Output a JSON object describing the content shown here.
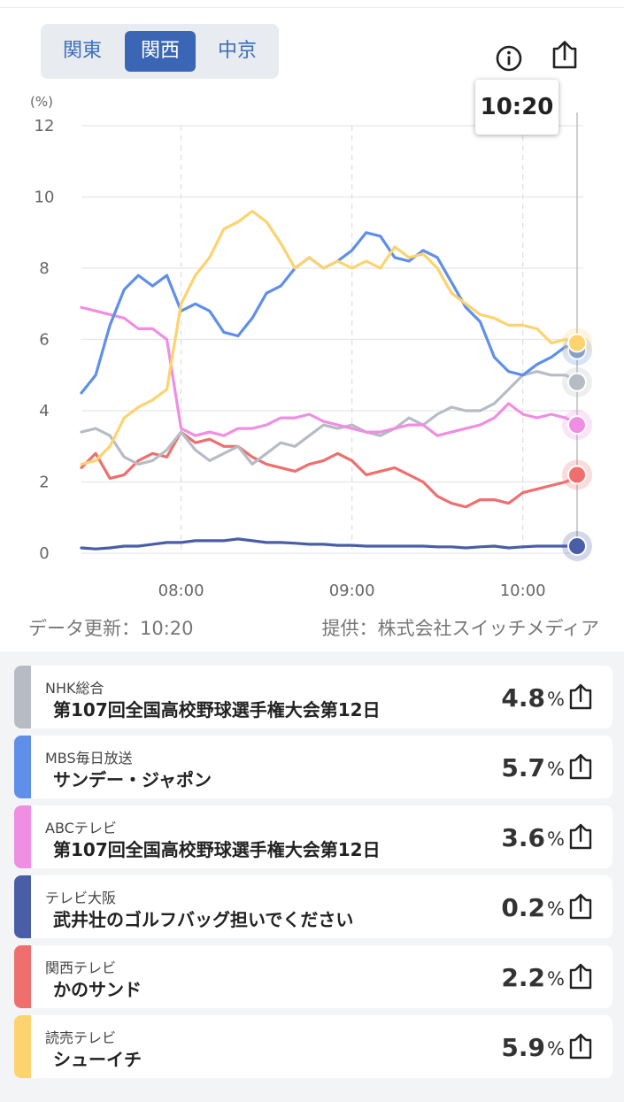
{
  "region_tabs": [
    {
      "label": "関東",
      "active": false
    },
    {
      "label": "関西",
      "active": true
    },
    {
      "label": "中京",
      "active": false
    }
  ],
  "icons": {
    "info": "info-icon",
    "share": "share-icon"
  },
  "cursor_time": "10:20",
  "chart_data": {
    "type": "line",
    "ylabel": "(%)",
    "ylim": [
      0,
      12
    ],
    "yticks": [
      "0",
      "2",
      "4",
      "6",
      "8",
      "10",
      "12"
    ],
    "xrange_minutes": [
      445,
      620
    ],
    "xticks": [
      {
        "min": 480,
        "label": "08:00"
      },
      {
        "min": 540,
        "label": "09:00"
      },
      {
        "min": 600,
        "label": "10:00"
      }
    ],
    "grid": true,
    "series": [
      {
        "name": "NHK総合",
        "color": "#b7bcc4",
        "x": [
          445,
          450,
          455,
          460,
          465,
          470,
          475,
          480,
          485,
          490,
          495,
          500,
          505,
          510,
          515,
          520,
          525,
          530,
          535,
          540,
          545,
          550,
          555,
          560,
          565,
          570,
          575,
          580,
          585,
          590,
          595,
          600,
          605,
          610,
          615,
          620
        ],
        "y": [
          3.4,
          3.5,
          3.3,
          2.7,
          2.5,
          2.6,
          2.9,
          3.4,
          2.9,
          2.6,
          2.8,
          3.0,
          2.5,
          2.8,
          3.1,
          3.0,
          3.3,
          3.6,
          3.5,
          3.6,
          3.4,
          3.3,
          3.5,
          3.8,
          3.6,
          3.9,
          4.1,
          4.0,
          4.0,
          4.2,
          4.6,
          5.0,
          5.1,
          5.0,
          5.0,
          4.8
        ]
      },
      {
        "name": "MBS毎日放送",
        "color": "#5f8fe8",
        "x": [
          445,
          450,
          455,
          460,
          465,
          470,
          475,
          480,
          485,
          490,
          495,
          500,
          505,
          510,
          515,
          520,
          525,
          530,
          535,
          540,
          545,
          550,
          555,
          560,
          565,
          570,
          575,
          580,
          585,
          590,
          595,
          600,
          605,
          610,
          615,
          620
        ],
        "y": [
          4.5,
          5.0,
          6.4,
          7.4,
          7.8,
          7.5,
          7.8,
          6.8,
          7.0,
          6.8,
          6.2,
          6.1,
          6.6,
          7.3,
          7.5,
          8.0,
          8.3,
          8.0,
          8.2,
          8.5,
          9.0,
          8.9,
          8.3,
          8.2,
          8.5,
          8.3,
          7.6,
          6.9,
          6.5,
          5.5,
          5.1,
          5.0,
          5.3,
          5.5,
          5.8,
          5.7
        ]
      },
      {
        "name": "ABCテレビ",
        "color": "#ef8ee2",
        "x": [
          445,
          450,
          455,
          460,
          465,
          470,
          475,
          480,
          485,
          490,
          495,
          500,
          505,
          510,
          515,
          520,
          525,
          530,
          535,
          540,
          545,
          550,
          555,
          560,
          565,
          570,
          575,
          580,
          585,
          590,
          595,
          600,
          605,
          610,
          615,
          620
        ],
        "y": [
          6.9,
          6.8,
          6.7,
          6.6,
          6.3,
          6.3,
          6.0,
          3.5,
          3.3,
          3.4,
          3.3,
          3.5,
          3.5,
          3.6,
          3.8,
          3.8,
          3.9,
          3.7,
          3.6,
          3.5,
          3.4,
          3.4,
          3.5,
          3.6,
          3.6,
          3.3,
          3.4,
          3.5,
          3.6,
          3.8,
          4.2,
          3.9,
          3.8,
          3.9,
          3.8,
          3.6
        ]
      },
      {
        "name": "テレビ大阪",
        "color": "#4a5ea8",
        "x": [
          445,
          450,
          455,
          460,
          465,
          470,
          475,
          480,
          485,
          490,
          495,
          500,
          505,
          510,
          515,
          520,
          525,
          530,
          535,
          540,
          545,
          550,
          555,
          560,
          565,
          570,
          575,
          580,
          585,
          590,
          595,
          600,
          605,
          610,
          615,
          620
        ],
        "y": [
          0.15,
          0.12,
          0.15,
          0.2,
          0.2,
          0.25,
          0.3,
          0.3,
          0.35,
          0.35,
          0.35,
          0.4,
          0.35,
          0.3,
          0.3,
          0.28,
          0.25,
          0.25,
          0.22,
          0.22,
          0.2,
          0.2,
          0.2,
          0.2,
          0.2,
          0.18,
          0.18,
          0.15,
          0.18,
          0.2,
          0.15,
          0.18,
          0.2,
          0.2,
          0.2,
          0.2
        ]
      },
      {
        "name": "関西テレビ",
        "color": "#ef6e6e",
        "x": [
          445,
          450,
          455,
          460,
          465,
          470,
          475,
          480,
          485,
          490,
          495,
          500,
          505,
          510,
          515,
          520,
          525,
          530,
          535,
          540,
          545,
          550,
          555,
          560,
          565,
          570,
          575,
          580,
          585,
          590,
          595,
          600,
          605,
          610,
          615,
          620
        ],
        "y": [
          2.4,
          2.8,
          2.1,
          2.2,
          2.6,
          2.8,
          2.7,
          3.4,
          3.1,
          3.2,
          3.0,
          3.0,
          2.7,
          2.5,
          2.4,
          2.3,
          2.5,
          2.6,
          2.8,
          2.6,
          2.2,
          2.3,
          2.4,
          2.2,
          2.0,
          1.6,
          1.4,
          1.3,
          1.5,
          1.5,
          1.4,
          1.7,
          1.8,
          1.9,
          2.0,
          2.2
        ]
      },
      {
        "name": "読売テレビ",
        "color": "#fcd36e",
        "x": [
          445,
          450,
          455,
          460,
          465,
          470,
          475,
          480,
          485,
          490,
          495,
          500,
          505,
          510,
          515,
          520,
          525,
          530,
          535,
          540,
          545,
          550,
          555,
          560,
          565,
          570,
          575,
          580,
          585,
          590,
          595,
          600,
          605,
          610,
          615,
          620
        ],
        "y": [
          2.5,
          2.6,
          3.0,
          3.8,
          4.1,
          4.3,
          4.6,
          7.0,
          7.8,
          8.3,
          9.1,
          9.3,
          9.6,
          9.3,
          8.7,
          8.0,
          8.3,
          8.0,
          8.2,
          8.0,
          8.2,
          8.0,
          8.6,
          8.3,
          8.4,
          8.0,
          7.3,
          7.0,
          6.7,
          6.6,
          6.4,
          6.4,
          6.3,
          5.9,
          6.0,
          5.9
        ]
      }
    ]
  },
  "footer": {
    "updated": "データ更新：10:20",
    "source": "提供：株式会社スイッチメディア"
  },
  "programs": [
    {
      "channel": "NHK総合",
      "title": "第107回全国高校野球選手権大会第12日",
      "rating": "4.8",
      "unit": "%",
      "color": "#b7bcc4"
    },
    {
      "channel": "MBS毎日放送",
      "title": "サンデー・ジャポン",
      "rating": "5.7",
      "unit": "%",
      "color": "#5f8fe8"
    },
    {
      "channel": "ABCテレビ",
      "title": "第107回全国高校野球選手権大会第12日",
      "rating": "3.6",
      "unit": "%",
      "color": "#ef8ee2"
    },
    {
      "channel": "テレビ大阪",
      "title": "武井壮のゴルフバッグ担いでください",
      "rating": "0.2",
      "unit": "%",
      "color": "#4a5ea8"
    },
    {
      "channel": "関西テレビ",
      "title": "かのサンド",
      "rating": "2.2",
      "unit": "%",
      "color": "#ef6e6e"
    },
    {
      "channel": "読売テレビ",
      "title": "シューイチ",
      "rating": "5.9",
      "unit": "%",
      "color": "#fcd36e"
    }
  ]
}
